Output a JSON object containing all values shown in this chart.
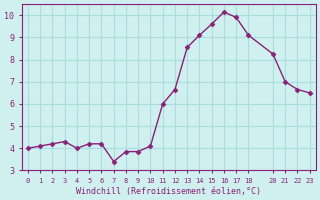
{
  "x": [
    0,
    1,
    2,
    3,
    4,
    5,
    6,
    7,
    8,
    9,
    10,
    11,
    12,
    13,
    14,
    15,
    16,
    17,
    18,
    20,
    21,
    22,
    23
  ],
  "y": [
    4.0,
    4.1,
    4.2,
    4.3,
    4.0,
    4.2,
    4.2,
    3.4,
    3.85,
    3.85,
    4.1,
    6.0,
    6.65,
    8.55,
    9.1,
    9.6,
    10.15,
    9.9,
    9.1,
    8.25,
    7.0,
    6.65,
    6.5
  ],
  "line_color": "#882277",
  "marker_color": "#882277",
  "bg_color": "#d0f0f0",
  "grid_color": "#aadddd",
  "xlabel": "Windchill (Refroidissement éolien,°C)",
  "xlabel_color": "#882277",
  "ylim": [
    3,
    10.5
  ],
  "yticks": [
    3,
    4,
    5,
    6,
    7,
    8,
    9,
    10
  ],
  "xticks": [
    0,
    1,
    2,
    3,
    4,
    5,
    6,
    7,
    8,
    9,
    10,
    11,
    12,
    13,
    14,
    15,
    16,
    17,
    18,
    20,
    21,
    22,
    23
  ],
  "tick_color": "#882277",
  "spine_color": "#882277"
}
